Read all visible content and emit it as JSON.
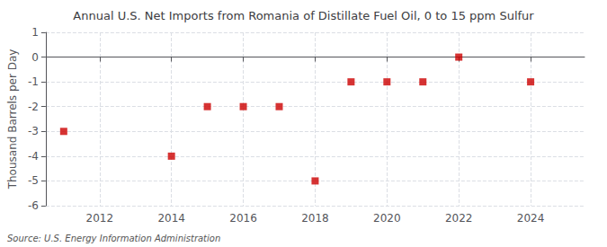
{
  "chart_data": {
    "type": "scatter",
    "title": "Annual U.S. Net Imports from Romania of Distillate Fuel Oil, 0 to 15 ppm Sulfur",
    "ylabel": "Thousand Barrels per Day",
    "annotation": "Source: U.S. Energy Information Administration",
    "x": [
      2011,
      2014,
      2015,
      2016,
      2017,
      2018,
      2019,
      2020,
      2021,
      2022,
      2024
    ],
    "values": [
      -3,
      -4,
      -2,
      -2,
      -2,
      -5,
      -1,
      -1,
      -1,
      0,
      -1
    ],
    "color": "#cc0000",
    "marker": "square",
    "xlim": [
      2010.5,
      2025.5
    ],
    "xticks": [
      2012,
      2014,
      2016,
      2018,
      2020,
      2022,
      2024
    ],
    "ylim": [
      -6,
      1
    ],
    "yticks": [
      -6,
      -5,
      -4,
      -3,
      -2,
      -1,
      0,
      1
    ],
    "grid": true
  }
}
